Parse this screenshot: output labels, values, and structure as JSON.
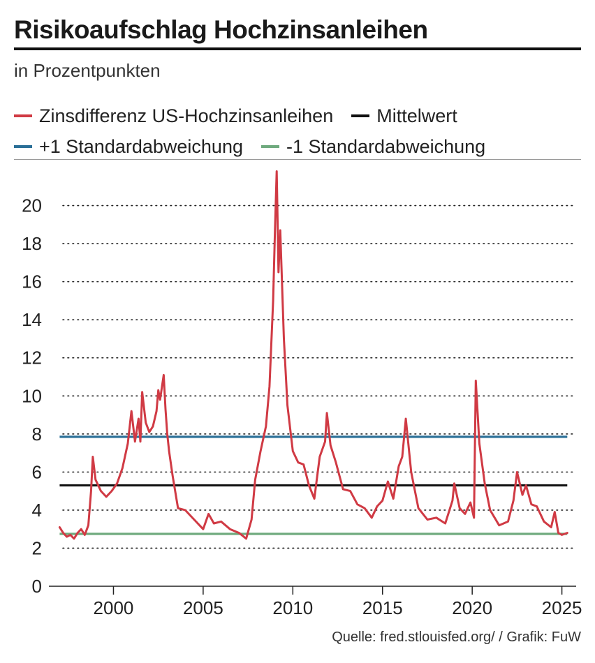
{
  "chart_data": {
    "type": "line",
    "title": "Risikoaufschlag Hochzinsanleihen",
    "subtitle": "in Prozentpunkten",
    "source": "Quelle: fred.stlouisfed.org/ / Grafik: FuW",
    "xlim": [
      1996.4,
      2025.6
    ],
    "ylim": [
      0,
      22
    ],
    "x_ticks": [
      2000,
      2005,
      2010,
      2015,
      2020,
      2025
    ],
    "y_ticks": [
      0,
      2,
      4,
      6,
      8,
      10,
      12,
      14,
      16,
      18,
      20
    ],
    "grid": "horizontal-dotted",
    "legend": "top",
    "series": [
      {
        "name": "Zinsdifferenz US-Hochzinsanleihen",
        "color": "#d03a44",
        "x": [
          1997.0,
          1997.2,
          1997.4,
          1997.6,
          1997.8,
          1998.0,
          1998.2,
          1998.4,
          1998.6,
          1998.75,
          1998.85,
          1999.0,
          1999.3,
          1999.6,
          1999.9,
          2000.2,
          2000.5,
          2000.8,
          2001.0,
          2001.2,
          2001.4,
          2001.5,
          2001.6,
          2001.8,
          2002.0,
          2002.2,
          2002.4,
          2002.5,
          2002.6,
          2002.8,
          2002.9,
          2003.0,
          2003.1,
          2003.3,
          2003.6,
          2004.0,
          2004.5,
          2005.0,
          2005.3,
          2005.6,
          2006.0,
          2006.5,
          2007.0,
          2007.4,
          2007.7,
          2007.9,
          2008.2,
          2008.5,
          2008.7,
          2008.9,
          2009.0,
          2009.1,
          2009.2,
          2009.3,
          2009.5,
          2009.7,
          2010.0,
          2010.3,
          2010.6,
          2010.9,
          2011.2,
          2011.5,
          2011.8,
          2011.9,
          2012.1,
          2012.4,
          2012.8,
          2013.2,
          2013.6,
          2014.0,
          2014.4,
          2014.7,
          2015.0,
          2015.3,
          2015.6,
          2015.9,
          2016.1,
          2016.3,
          2016.6,
          2017.0,
          2017.5,
          2018.0,
          2018.5,
          2018.9,
          2019.0,
          2019.3,
          2019.6,
          2019.9,
          2020.1,
          2020.2,
          2020.4,
          2020.7,
          2021.0,
          2021.5,
          2022.0,
          2022.3,
          2022.5,
          2022.8,
          2023.0,
          2023.3,
          2023.6,
          2024.0,
          2024.4,
          2024.6,
          2024.8,
          2025.0,
          2025.3
        ],
        "y": [
          3.1,
          2.8,
          2.6,
          2.7,
          2.5,
          2.8,
          3.0,
          2.7,
          3.2,
          5.0,
          6.8,
          5.6,
          5.0,
          4.7,
          5.0,
          5.4,
          6.2,
          7.5,
          9.2,
          7.6,
          8.8,
          7.6,
          10.2,
          8.6,
          8.1,
          8.4,
          9.2,
          10.3,
          9.8,
          11.1,
          9.3,
          8.0,
          7.1,
          5.8,
          4.1,
          4.0,
          3.5,
          3.0,
          3.8,
          3.3,
          3.4,
          3.0,
          2.8,
          2.5,
          3.5,
          5.6,
          7.1,
          8.4,
          10.5,
          15.0,
          18.5,
          21.8,
          16.5,
          18.7,
          13.0,
          9.5,
          7.1,
          6.5,
          6.4,
          5.3,
          4.6,
          6.8,
          7.6,
          9.1,
          7.4,
          6.5,
          5.1,
          5.0,
          4.3,
          4.1,
          3.6,
          4.2,
          4.5,
          5.5,
          4.6,
          6.3,
          6.8,
          8.8,
          6.0,
          4.1,
          3.5,
          3.6,
          3.3,
          4.5,
          5.4,
          4.1,
          3.8,
          4.4,
          3.6,
          10.8,
          7.5,
          5.4,
          4.0,
          3.2,
          3.4,
          4.5,
          6.0,
          4.8,
          5.3,
          4.3,
          4.2,
          3.4,
          3.1,
          3.9,
          2.8,
          2.7,
          2.8
        ]
      },
      {
        "name": "Mittelwert",
        "color": "#111111",
        "value": 5.3
      },
      {
        "name": "+1 Standardabweichung",
        "color": "#2a6f97",
        "value": 7.85
      },
      {
        "name": "-1 Standardabweichung",
        "color": "#6faa7e",
        "value": 2.75
      }
    ]
  }
}
